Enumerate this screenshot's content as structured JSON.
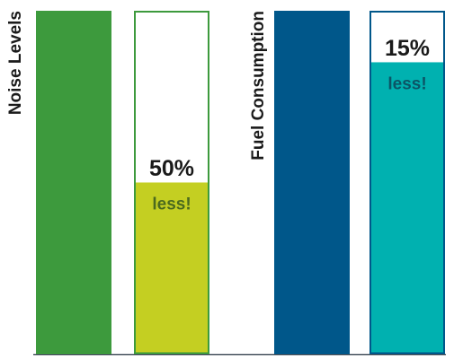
{
  "chart_data": [
    {
      "type": "bar",
      "y_label": "Noise Levels",
      "values": [
        100,
        50
      ],
      "colors": [
        "#3d9a3d",
        "#c4cf22"
      ],
      "frame_color": "#3d9a3d",
      "annotations": [
        "50%",
        "less!"
      ],
      "annotation_colors": [
        "#1a1a1a",
        "#4b6a1e"
      ],
      "ylim": [
        0,
        100
      ]
    },
    {
      "type": "bar",
      "y_label": "Fuel Consumption",
      "values": [
        100,
        85
      ],
      "colors": [
        "#00578a",
        "#00b1b0"
      ],
      "frame_color": "#00578a",
      "annotations": [
        "15%",
        "less!"
      ],
      "annotation_colors": [
        "#1a1a1a",
        "#0b5566"
      ],
      "ylim": [
        0,
        100
      ]
    }
  ]
}
